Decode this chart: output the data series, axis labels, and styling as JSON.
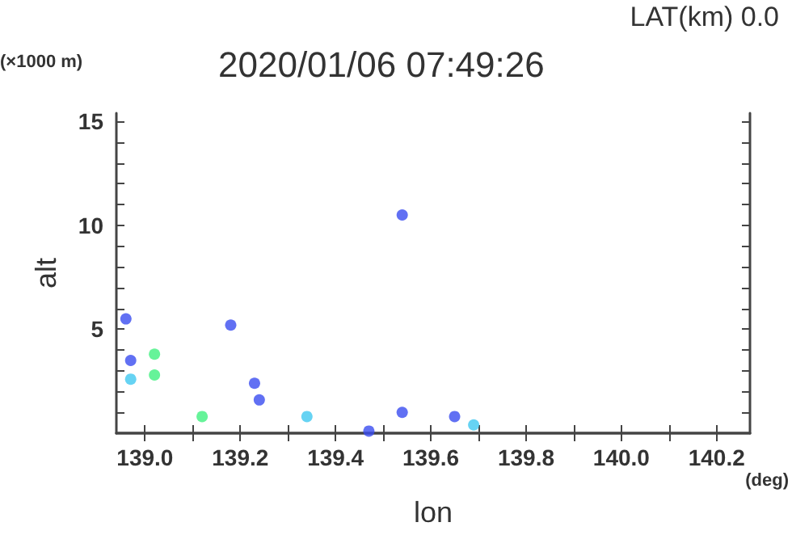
{
  "chart_data": {
    "type": "scatter",
    "title": "2020/01/06 07:49:26",
    "xlabel": "lon",
    "ylabel": "alt",
    "annotations": [
      "LAT(km) 0.0",
      "(×1000 m)",
      "(deg)"
    ],
    "x": [
      138.96,
      138.97,
      138.97,
      139.02,
      139.02,
      139.12,
      139.18,
      139.23,
      139.24,
      139.34,
      139.47,
      139.54,
      139.54,
      139.65,
      139.69
    ],
    "values": [
      5.5,
      3.5,
      2.6,
      3.8,
      2.8,
      0.8,
      5.2,
      2.4,
      1.6,
      0.8,
      0.1,
      10.5,
      1.0,
      0.8,
      0.4
    ],
    "colors": [
      "#3a4cf0",
      "#3a4cf0",
      "#40c8f0",
      "#40f080",
      "#40f080",
      "#40f080",
      "#3a4cf0",
      "#3a4cf0",
      "#3a4cf0",
      "#40c8f0",
      "#3a4cf0",
      "#3a4cf0",
      "#3a4cf0",
      "#3a4cf0",
      "#40c8f0"
    ],
    "marker": "circle",
    "grid": false,
    "xlim": [
      138.94,
      140.27
    ],
    "ylim": [
      0,
      15.4
    ],
    "xticks": [
      {
        "value": 139.0,
        "label": "139.0"
      },
      {
        "value": 139.1,
        "label": null
      },
      {
        "value": 139.2,
        "label": "139.2"
      },
      {
        "value": 139.3,
        "label": null
      },
      {
        "value": 139.4,
        "label": "139.4"
      },
      {
        "value": 139.5,
        "label": null
      },
      {
        "value": 139.6,
        "label": "139.6"
      },
      {
        "value": 139.7,
        "label": null
      },
      {
        "value": 139.8,
        "label": "139.8"
      },
      {
        "value": 139.9,
        "label": null
      },
      {
        "value": 140.0,
        "label": "140.0"
      },
      {
        "value": 140.1,
        "label": null
      },
      {
        "value": 140.2,
        "label": "140.2"
      }
    ],
    "yticks": [
      {
        "value": 1,
        "label": null
      },
      {
        "value": 2,
        "label": null
      },
      {
        "value": 3,
        "label": null
      },
      {
        "value": 4,
        "label": null
      },
      5,
      {
        "value": 6,
        "label": null
      },
      {
        "value": 7,
        "label": null
      },
      {
        "value": 8,
        "label": null
      },
      {
        "value": 9,
        "label": null
      },
      10,
      {
        "value": 11,
        "label": null
      },
      {
        "value": 12,
        "label": null
      },
      {
        "value": 13,
        "label": null
      },
      {
        "value": 14,
        "label": null
      },
      15
    ]
  }
}
